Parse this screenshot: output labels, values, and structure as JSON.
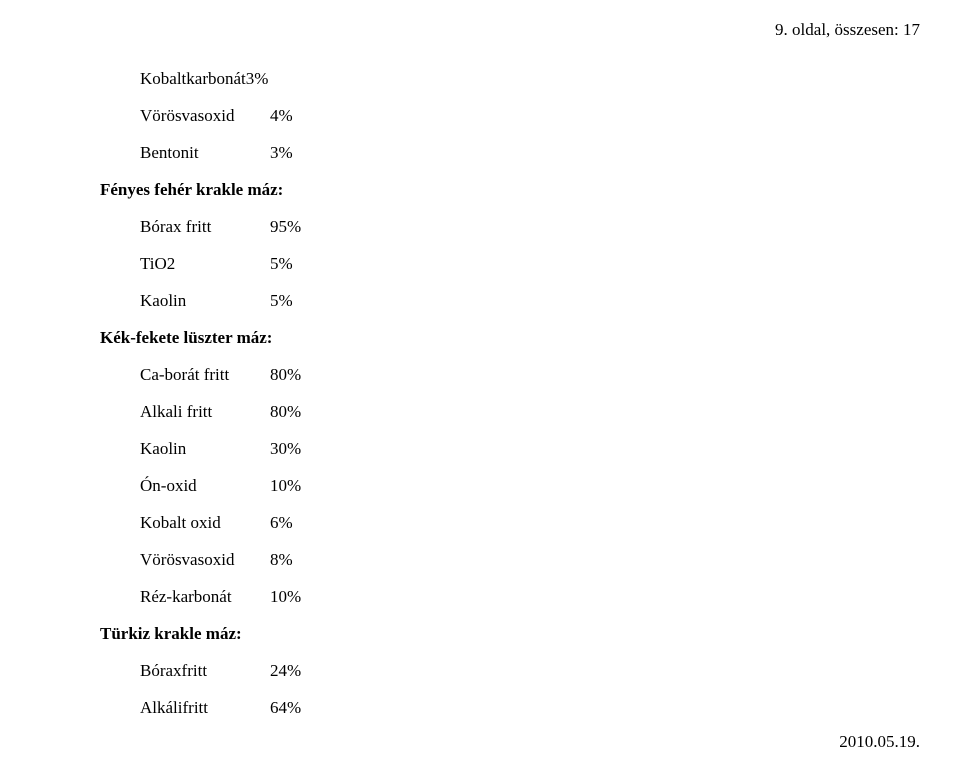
{
  "header": {
    "text": "9. oldal, összesen: 17"
  },
  "content": {
    "topLine": "Kobaltkarbonát3%",
    "group1": {
      "rows": [
        {
          "label": "Vörösvasoxid",
          "value": "4%"
        },
        {
          "label": "Bentonit",
          "value": "3%"
        }
      ]
    },
    "section1": {
      "title": "Fényes fehér krakle máz:",
      "rows": [
        {
          "label": "Bórax fritt",
          "value": "95%"
        },
        {
          "label": "TiO2",
          "value": "5%"
        },
        {
          "label": "Kaolin",
          "value": "5%"
        }
      ]
    },
    "section2": {
      "title": "Kék-fekete lüszter máz:",
      "rows": [
        {
          "label": "Ca-borát fritt",
          "value": "80%"
        },
        {
          "label": "Alkali fritt",
          "value": "80%"
        },
        {
          "label": "Kaolin",
          "value": "30%"
        },
        {
          "label": "Ón-oxid",
          "value": "10%"
        },
        {
          "label": "Kobalt oxid",
          "value": "6%"
        },
        {
          "label": "Vörösvasoxid",
          "value": "8%"
        },
        {
          "label": "Réz-karbonát",
          "value": "10%"
        }
      ]
    },
    "section3": {
      "title": "Türkiz krakle máz:",
      "rows": [
        {
          "label": "Bóraxfritt",
          "value": "24%"
        },
        {
          "label": "Alkálifritt",
          "value": "64%"
        }
      ]
    }
  },
  "footer": {
    "date": "2010.05.19."
  },
  "colors": {
    "text": "#000000",
    "background": "#ffffff"
  },
  "typography": {
    "fontFamily": "Times New Roman",
    "fontSizePt": 13
  }
}
